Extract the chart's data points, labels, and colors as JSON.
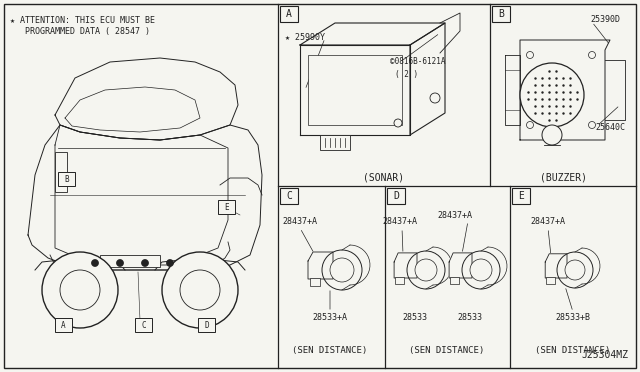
{
  "bg_color": "#f5f5f0",
  "line_color": "#222222",
  "attention_text_line1": "★ ATTENTION: THIS ECU MUST BE",
  "attention_text_line2": "   PROGRAMMED DATA ( 28547 )",
  "diagram_id": "J25304MZ",
  "panel_label_A": "A",
  "panel_label_B": "B",
  "panel_label_C": "C",
  "panel_label_D": "D",
  "panel_label_E": "E",
  "sonar_part1": "★ 25990Y",
  "sonar_part2": "©0816B-6121A",
  "sonar_part2b": "( 2 )",
  "sonar_caption": "(SONAR)",
  "buzzer_part1": "25390D",
  "buzzer_part2": "25640C",
  "buzzer_caption": "(BUZZER)",
  "sen_part_top": "28437+A",
  "sen_c_bot": "28533+A",
  "sen_d_bot1": "28533",
  "sen_d_bot2": "28533",
  "sen_e_bot": "28533+B",
  "sen_caption": "(SEN DISTANCE)",
  "car_labels": [
    "B",
    "E",
    "A",
    "C",
    "D"
  ],
  "fig_w": 6.4,
  "fig_h": 3.72,
  "dpi": 100
}
